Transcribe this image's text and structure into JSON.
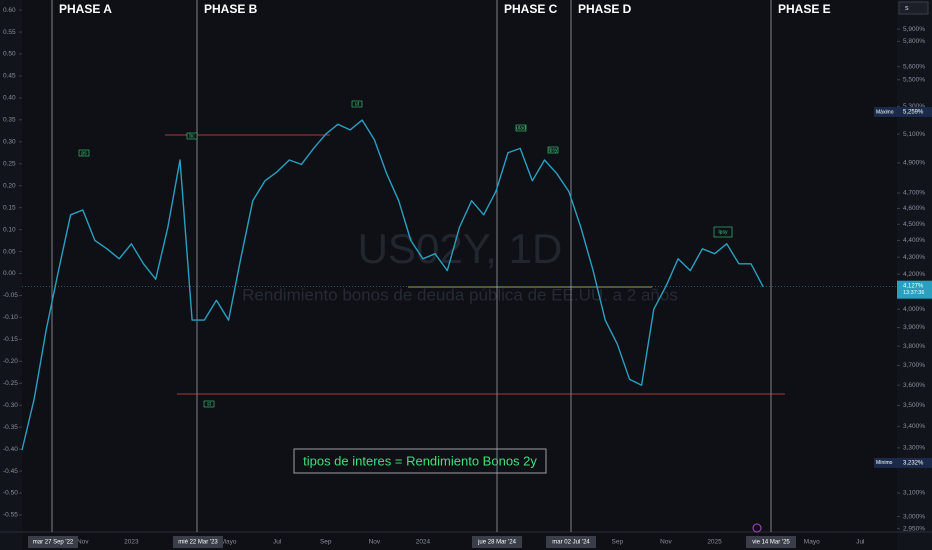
{
  "chart_data": {
    "type": "line",
    "log": true,
    "grid": false,
    "categories": [
      null,
      null,
      null,
      null,
      null,
      "Nov",
      null,
      null,
      null,
      "2023",
      null,
      null,
      null,
      null,
      null,
      null,
      null,
      "Mayo",
      null,
      null,
      null,
      "Jul",
      null,
      null,
      null,
      "Sep",
      null,
      null,
      null,
      "Nov",
      null,
      null,
      null,
      "2024",
      null,
      null,
      null,
      null,
      null,
      null,
      null,
      null,
      null,
      null,
      null,
      null,
      null,
      null,
      null,
      "Sep",
      null,
      null,
      null,
      "Nov",
      null,
      null,
      null,
      "2025",
      null,
      null,
      null,
      null,
      null,
      null,
      null,
      "Mayo",
      null,
      null,
      null,
      "Jul",
      null,
      null
    ],
    "values": [
      3.29,
      3.53,
      3.89,
      4.22,
      4.56,
      4.59,
      4.4,
      4.35,
      4.29,
      4.38,
      4.26,
      4.17,
      4.48,
      4.92,
      3.94,
      3.94,
      4.05,
      3.94,
      4.29,
      4.65,
      4.78,
      4.84,
      4.92,
      4.89,
      5.0,
      5.1,
      5.17,
      5.13,
      5.2,
      5.06,
      4.83,
      4.65,
      4.4,
      4.29,
      4.32,
      4.22,
      4.48,
      4.65,
      4.56,
      4.71,
      4.97,
      5.0,
      4.78,
      4.92,
      4.83,
      4.71,
      4.48,
      4.22,
      3.94,
      3.81,
      3.63,
      3.6,
      4.0,
      4.13,
      4.29,
      4.22,
      4.35,
      4.32,
      4.38,
      4.26,
      4.26,
      4.127,
      null,
      null,
      null,
      null,
      null,
      null,
      null,
      null,
      null,
      null
    ],
    "color": "#2a9fc0",
    "ylim": [
      2.904,
      6.143
    ],
    "yticks": [
      {
        "value": 5.9,
        "label": "5,900%"
      },
      {
        "value": 5.8,
        "label": "5,800%"
      },
      {
        "value": 5.6,
        "label": "5,600%"
      },
      {
        "value": 5.5,
        "label": "5,500%"
      },
      {
        "value": 5.3,
        "label": "5,300%"
      },
      {
        "value": 5.1,
        "label": "5,100%"
      },
      {
        "value": 4.9,
        "label": "4,900%"
      },
      {
        "value": 4.7,
        "label": "4,700%"
      },
      {
        "value": 4.6,
        "label": "4,600%"
      },
      {
        "value": 4.5,
        "label": "4,500%"
      },
      {
        "value": 4.4,
        "label": "4,400%"
      },
      {
        "value": 4.3,
        "label": "4,300%"
      },
      {
        "value": 4.2,
        "label": "4,200%"
      },
      {
        "value": 4.0,
        "label": "4,000%"
      },
      {
        "value": 3.9,
        "label": "3,900%"
      },
      {
        "value": 3.8,
        "label": "3,800%"
      },
      {
        "value": 3.7,
        "label": "3,700%"
      },
      {
        "value": 3.6,
        "label": "3,600%"
      },
      {
        "value": 3.5,
        "label": "3,500%"
      },
      {
        "value": 3.4,
        "label": "3,400%"
      },
      {
        "value": 3.3,
        "label": "3,300%"
      },
      {
        "value": 3.1,
        "label": "3,100%"
      },
      {
        "value": 3.0,
        "label": "3,000%"
      },
      {
        "value": 2.95,
        "label": "2,950%"
      }
    ],
    "y2lim": [
      -0.607,
      0.623
    ],
    "y2ticks": [
      {
        "value": 0.6,
        "label": "0.60"
      },
      {
        "value": 0.55,
        "label": "0.55"
      },
      {
        "value": 0.5,
        "label": "0.50"
      },
      {
        "value": 0.45,
        "label": "0.45"
      },
      {
        "value": 0.4,
        "label": "0.40"
      },
      {
        "value": 0.35,
        "label": "0.35"
      },
      {
        "value": 0.3,
        "label": "0.30"
      },
      {
        "value": 0.25,
        "label": "0.25"
      },
      {
        "value": 0.2,
        "label": "0.20"
      },
      {
        "value": 0.15,
        "label": "0.15"
      },
      {
        "value": 0.1,
        "label": "0.10"
      },
      {
        "value": 0.05,
        "label": "0.05"
      },
      {
        "value": 0,
        "label": "0.00"
      },
      {
        "value": -0.05,
        "label": "-0.05"
      },
      {
        "value": -0.1,
        "label": "-0.10"
      },
      {
        "value": -0.15,
        "label": "-0.15"
      },
      {
        "value": -0.2,
        "label": "-0.20"
      },
      {
        "value": -0.25,
        "label": "-0.25"
      },
      {
        "value": -0.3,
        "label": "-0.30"
      },
      {
        "value": -0.35,
        "label": "-0.35"
      },
      {
        "value": -0.4,
        "label": "-0.40"
      },
      {
        "value": -0.45,
        "label": "-0.45"
      },
      {
        "value": -0.5,
        "label": "-0.50"
      },
      {
        "value": -0.55,
        "label": "-0.55"
      }
    ],
    "price_labels": {
      "max_name": "Máximo",
      "max": {
        "value": 5.259,
        "label": "5,259%"
      },
      "min_name": "Mínimo",
      "min": {
        "value": 3.232,
        "label": "3,232%"
      },
      "last": {
        "value": 4.127,
        "label": "4,127%"
      },
      "countdown": "13:37:36"
    },
    "watermark": "US02Y, 1D",
    "watermark_subtitle": "Rendimiento bonos de deuda pública de EE.UU. a 2 años",
    "phases": [
      "PHASE A",
      "PHASE B",
      "PHASE C",
      "PHASE D",
      "PHASE E"
    ],
    "events": [
      "ps",
      "bc",
      "ut",
      "utad",
      "lpsy",
      "st",
      "lpsy"
    ],
    "note": "tipos de interes = Rendimiento Bonos 2y",
    "date_labels": [
      "mar 27 Sep '22",
      "mié 22 Mar '23",
      "jue 28 Mar '24",
      "mar 02 Jul '24",
      "vie 14 Mar '25"
    ],
    "symbol_box": "s"
  }
}
